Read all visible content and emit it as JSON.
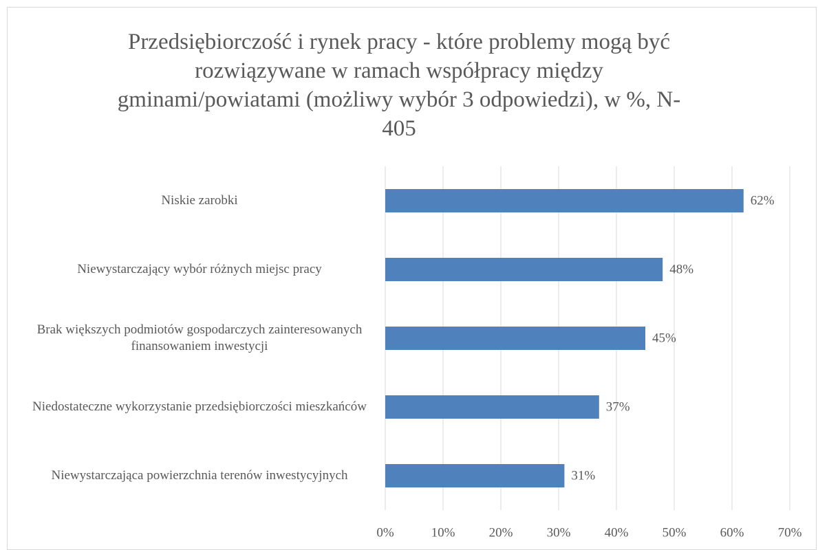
{
  "chart_data": {
    "type": "bar",
    "orientation": "horizontal",
    "title": "Przedsiębiorczość i rynek pracy - które problemy mogą być rozwiązywane w ramach współpracy między gminami/powiatami (możliwy wybór 3 odpowiedzi), w %, N-405",
    "categories": [
      "Niskie zarobki",
      "Niewystarczający wybór różnych miejsc pracy",
      "Brak większych podmiotów gospodarczych zainteresowanych finansowaniem inwestycji",
      "Niedostateczne wykorzystanie przedsiębiorczości mieszkańców",
      "Niewystarczająca powierzchnia terenów inwestycyjnych"
    ],
    "values": [
      62,
      48,
      45,
      37,
      31
    ],
    "value_labels": [
      "62%",
      "48%",
      "45%",
      "37%",
      "31%"
    ],
    "color": "#4f81bd",
    "xlim": [
      0,
      70
    ],
    "xticks": [
      {
        "value": 0,
        "label": "0%"
      },
      {
        "value": 10,
        "label": "10%"
      },
      {
        "value": 20,
        "label": "20%"
      },
      {
        "value": 30,
        "label": "30%"
      },
      {
        "value": 40,
        "label": "40%"
      },
      {
        "value": 50,
        "label": "50%"
      },
      {
        "value": 60,
        "label": "60%"
      },
      {
        "value": 70,
        "label": "70%"
      }
    ],
    "grid": true
  }
}
